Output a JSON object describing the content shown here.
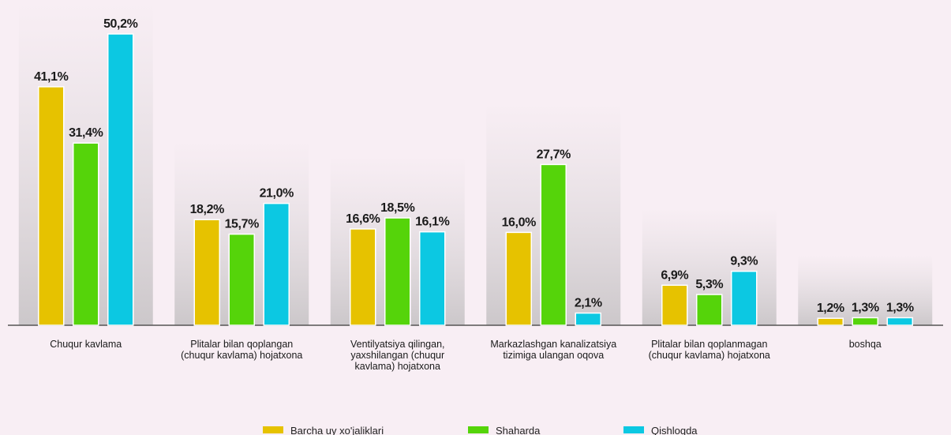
{
  "chart_data": {
    "type": "bar",
    "categories": [
      "Chuqur kavlama",
      "Plitalar bilan qoplangan (chuqur kavlama) hojatxona",
      "Ventilyatsiya qilingan, yaxshilangan (chuqur kavlama) hojatxona",
      "Markazlashgan kanalizatsiya tizimiga ulangan oqova",
      "Plitalar bilan qoplanmagan (chuqur kavlama) hojatxona",
      "boshqa"
    ],
    "series": [
      {
        "name": "Barcha uy xo'jaliklari",
        "color": "#e6c200",
        "values": [
          41.1,
          18.2,
          16.6,
          16.0,
          6.9,
          1.2
        ],
        "value_labels": [
          "41,1%",
          "18,2%",
          "16,6%",
          "16,0%",
          "6,9%",
          "1,2%"
        ]
      },
      {
        "name": "Shaharda",
        "color": "#55d40a",
        "values": [
          31.4,
          15.7,
          18.5,
          27.7,
          5.3,
          1.3
        ],
        "value_labels": [
          "31,4%",
          "15,7%",
          "18,5%",
          "27,7%",
          "5,3%",
          "1,3%"
        ]
      },
      {
        "name": "Qishloqda",
        "color": "#0cc8e2",
        "values": [
          50.2,
          21.0,
          16.1,
          2.1,
          9.3,
          1.3
        ],
        "value_labels": [
          "50,2%",
          "21,0%",
          "16,1%",
          "2,1%",
          "9,3%",
          "1,3%"
        ]
      }
    ]
  }
}
